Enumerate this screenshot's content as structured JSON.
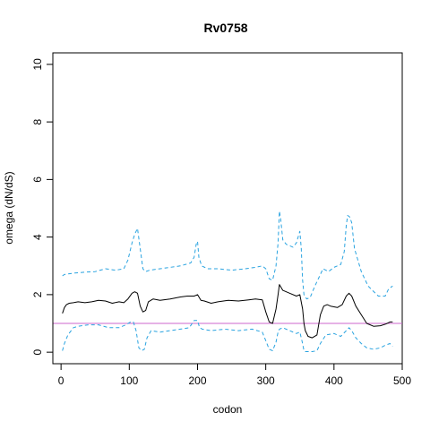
{
  "chart_data": {
    "type": "line",
    "title": "Rv0758",
    "xlabel": "codon",
    "ylabel": "omega (dN/dS)",
    "xlim": [
      -12,
      500
    ],
    "ylim": [
      -0.4,
      10.4
    ],
    "x_ticks": [
      0,
      100,
      200,
      300,
      400,
      500
    ],
    "y_ticks": [
      0,
      2,
      4,
      6,
      8,
      10
    ],
    "grid": false,
    "legend": "none",
    "reference_line": {
      "y": 1,
      "color": "#cc66cc"
    },
    "series": [
      {
        "role": "estimate",
        "color": "#000000",
        "dash": "solid",
        "x": [
          2,
          5,
          8,
          12,
          18,
          25,
          35,
          45,
          55,
          65,
          75,
          85,
          92,
          98,
          104,
          108,
          112,
          116,
          120,
          124,
          128,
          135,
          145,
          160,
          175,
          185,
          195,
          200,
          205,
          210,
          220,
          230,
          245,
          260,
          275,
          285,
          295,
          300,
          305,
          310,
          315,
          318,
          320,
          325,
          335,
          345,
          350,
          354,
          356,
          358,
          362,
          368,
          375,
          380,
          385,
          390,
          395,
          405,
          412,
          418,
          422,
          426,
          432,
          440,
          448,
          458,
          468,
          476,
          482,
          486
        ],
        "y": [
          1.35,
          1.55,
          1.65,
          1.7,
          1.72,
          1.75,
          1.72,
          1.75,
          1.8,
          1.78,
          1.7,
          1.75,
          1.72,
          1.85,
          2.05,
          2.1,
          2.05,
          1.6,
          1.4,
          1.45,
          1.75,
          1.85,
          1.8,
          1.85,
          1.92,
          1.95,
          1.95,
          2.0,
          1.8,
          1.78,
          1.7,
          1.75,
          1.8,
          1.78,
          1.82,
          1.85,
          1.82,
          1.4,
          1.05,
          1.0,
          1.5,
          2.0,
          2.35,
          2.15,
          2.05,
          1.95,
          2.0,
          1.5,
          1.0,
          0.75,
          0.55,
          0.5,
          0.6,
          1.3,
          1.6,
          1.65,
          1.6,
          1.55,
          1.65,
          1.95,
          2.05,
          1.95,
          1.6,
          1.3,
          1.0,
          0.9,
          0.92,
          0.98,
          1.05,
          1.05
        ]
      },
      {
        "role": "upper",
        "color": "#29a3e0",
        "dash": "dashed",
        "x": [
          2,
          5,
          10,
          20,
          35,
          50,
          65,
          80,
          92,
          98,
          104,
          108,
          112,
          116,
          120,
          124,
          130,
          145,
          160,
          175,
          190,
          195,
          198,
          200,
          202,
          206,
          215,
          230,
          250,
          270,
          285,
          295,
          300,
          305,
          310,
          315,
          318,
          320,
          322,
          325,
          330,
          340,
          345,
          350,
          352,
          354,
          356,
          360,
          365,
          372,
          378,
          384,
          392,
          400,
          410,
          415,
          418,
          420,
          423,
          426,
          430,
          440,
          450,
          465,
          475,
          480,
          486
        ],
        "y": [
          2.65,
          2.7,
          2.72,
          2.75,
          2.78,
          2.8,
          2.9,
          2.85,
          2.9,
          3.2,
          3.8,
          4.1,
          4.3,
          3.6,
          2.9,
          2.8,
          2.85,
          2.9,
          2.95,
          3.0,
          3.1,
          3.3,
          3.75,
          3.85,
          3.3,
          3.0,
          2.9,
          2.9,
          2.85,
          2.9,
          2.95,
          3.0,
          2.9,
          2.55,
          2.5,
          3.0,
          3.8,
          4.9,
          4.6,
          3.9,
          3.75,
          3.65,
          3.8,
          4.2,
          3.6,
          2.5,
          2.0,
          1.85,
          1.9,
          2.3,
          2.6,
          2.9,
          2.8,
          2.95,
          3.05,
          3.5,
          4.4,
          4.75,
          4.7,
          4.5,
          3.6,
          2.8,
          2.3,
          1.95,
          1.95,
          2.2,
          2.3
        ]
      },
      {
        "role": "lower",
        "color": "#29a3e0",
        "dash": "dashed",
        "x": [
          2,
          5,
          10,
          18,
          25,
          40,
          55,
          70,
          85,
          95,
          102,
          106,
          110,
          114,
          118,
          122,
          126,
          132,
          145,
          160,
          175,
          188,
          195,
          200,
          203,
          207,
          220,
          240,
          260,
          280,
          295,
          300,
          305,
          310,
          315,
          318,
          320,
          325,
          335,
          345,
          350,
          354,
          356,
          358,
          362,
          368,
          375,
          380,
          388,
          400,
          410,
          418,
          422,
          426,
          432,
          440,
          448,
          458,
          468,
          476,
          482,
          486
        ],
        "y": [
          0.05,
          0.3,
          0.6,
          0.85,
          0.9,
          0.95,
          0.95,
          0.85,
          0.85,
          0.95,
          1.05,
          1.05,
          0.75,
          0.15,
          0.05,
          0.1,
          0.5,
          0.75,
          0.7,
          0.75,
          0.8,
          0.85,
          1.1,
          1.1,
          0.85,
          0.8,
          0.75,
          0.8,
          0.75,
          0.8,
          0.7,
          0.4,
          0.1,
          0.05,
          0.35,
          0.7,
          0.8,
          0.85,
          0.75,
          0.65,
          0.7,
          0.3,
          0.05,
          0.02,
          0.02,
          0.02,
          0.05,
          0.3,
          0.6,
          0.65,
          0.55,
          0.75,
          0.85,
          0.75,
          0.5,
          0.3,
          0.15,
          0.1,
          0.15,
          0.25,
          0.3,
          0.2
        ]
      }
    ]
  }
}
